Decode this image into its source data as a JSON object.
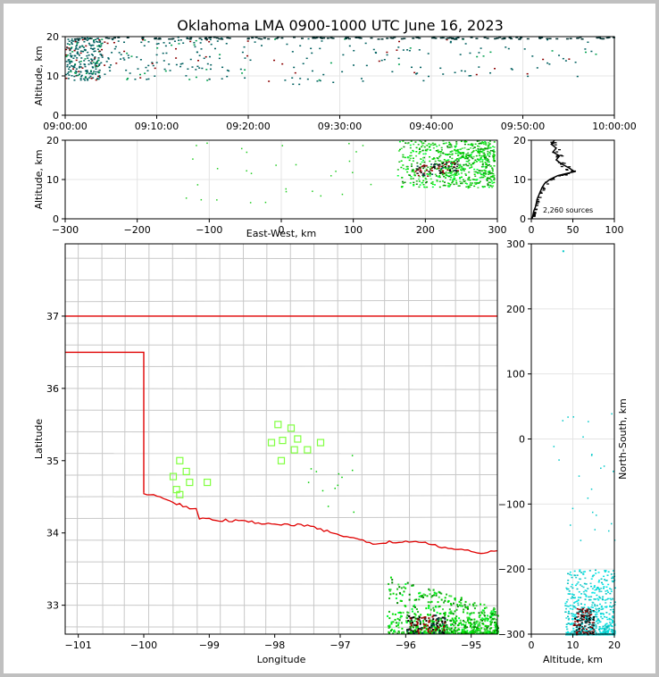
{
  "title": "Oklahoma LMA 0900-1000 UTC June 16, 2023",
  "chart_data": [
    {
      "panel": "time-height",
      "type": "scatter",
      "ylabel": "Altitude, km",
      "ylim": [
        0,
        20
      ],
      "yticks": [
        "0",
        "10",
        "20"
      ],
      "xticks": [
        "09:00:00",
        "09:10:00",
        "09:20:00",
        "09:30:00",
        "09:40:00",
        "09:50:00",
        "10:00:00"
      ],
      "xlim_minutes": [
        0,
        60
      ],
      "grid": true
    },
    {
      "panel": "east-west-altitude",
      "type": "scatter",
      "xlabel": "East-West, km",
      "ylabel": "Altitude, km",
      "xlim": [
        -300,
        300
      ],
      "ylim": [
        0,
        20
      ],
      "xticks": [
        "−300",
        "−200",
        "−100",
        "0",
        "100",
        "200",
        "300"
      ],
      "yticks": [
        "0",
        "10",
        "20"
      ],
      "grid": true
    },
    {
      "panel": "altitude-histogram",
      "type": "line",
      "annotation": "2,260 sources",
      "xlim": [
        0,
        100
      ],
      "ylim": [
        0,
        20
      ],
      "xticks": [
        "0",
        "50",
        "100"
      ],
      "yticks": [
        "0",
        "10",
        "20"
      ],
      "profile": [
        [
          1,
          0
        ],
        [
          2,
          1
        ],
        [
          3,
          2
        ],
        [
          5,
          3
        ],
        [
          6,
          4
        ],
        [
          7,
          5
        ],
        [
          9,
          6
        ],
        [
          11,
          7
        ],
        [
          13,
          8
        ],
        [
          16,
          9
        ],
        [
          22,
          10
        ],
        [
          32,
          11
        ],
        [
          52,
          12
        ],
        [
          45,
          13
        ],
        [
          36,
          14
        ],
        [
          30,
          15
        ],
        [
          34,
          16
        ],
        [
          26,
          17
        ],
        [
          30,
          18
        ],
        [
          24,
          19
        ],
        [
          28,
          20
        ]
      ]
    },
    {
      "panel": "plan-view",
      "type": "scatter",
      "xlabel": "Longitude",
      "ylabel": "Latitude",
      "xlim": [
        -101.2,
        -94.6
      ],
      "ylim": [
        32.6,
        38
      ],
      "xticks": [
        "−101",
        "−100",
        "−99",
        "−98",
        "−97",
        "−96",
        "−95"
      ],
      "yticks": [
        "33",
        "34",
        "35",
        "36",
        "37"
      ],
      "stations": [
        [
          -97.95,
          35.5
        ],
        [
          -97.75,
          35.45
        ],
        [
          -98.05,
          35.25
        ],
        [
          -97.88,
          35.28
        ],
        [
          -97.65,
          35.3
        ],
        [
          -97.7,
          35.15
        ],
        [
          -97.5,
          35.15
        ],
        [
          -97.3,
          35.25
        ],
        [
          -97.9,
          35.0
        ],
        [
          -99.45,
          35.0
        ],
        [
          -99.35,
          34.85
        ],
        [
          -99.55,
          34.78
        ],
        [
          -99.3,
          34.7
        ],
        [
          -99.03,
          34.7
        ],
        [
          -99.5,
          34.6
        ],
        [
          -99.45,
          34.53
        ]
      ]
    },
    {
      "panel": "altitude-north-south",
      "type": "scatter",
      "xlabel": "Altitude, km",
      "ylabel": "North-South, km",
      "xlim": [
        0,
        20
      ],
      "ylim": [
        -300,
        300
      ],
      "xticks": [
        "0",
        "10",
        "20"
      ],
      "yticks": [
        "−300",
        "−200",
        "−100",
        "0",
        "100",
        "200",
        "300"
      ],
      "grid": true
    }
  ]
}
